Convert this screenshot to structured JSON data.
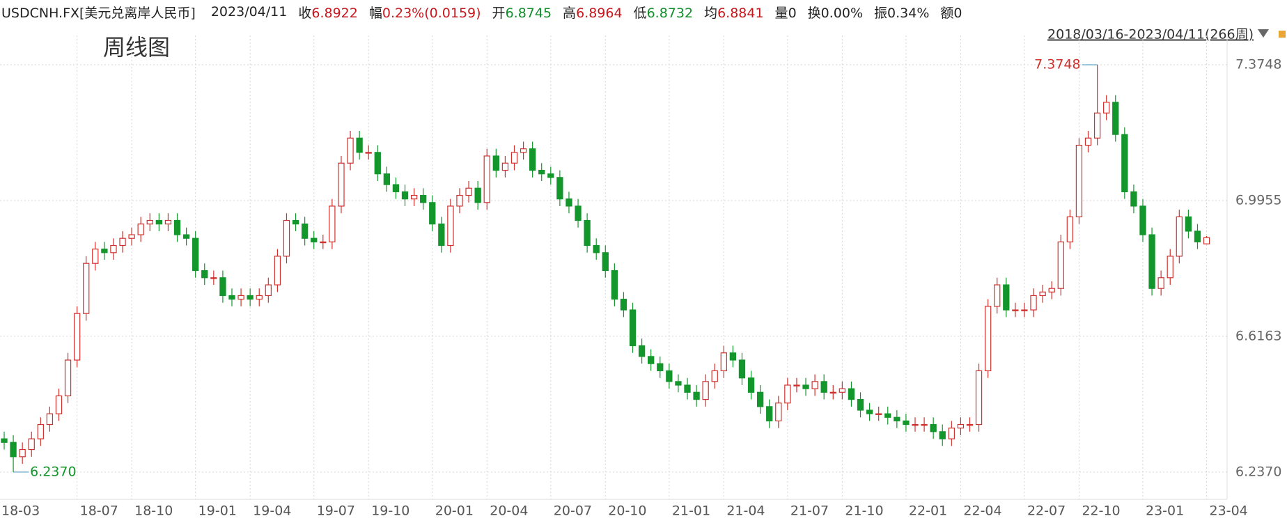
{
  "header": {
    "symbol": "USDCNH.FX[美元兑离岸人民币]",
    "date": "2023/04/11",
    "fields": [
      {
        "label": "收",
        "value": "6.8922",
        "color": "#c8161d"
      },
      {
        "label": "幅",
        "value": "0.23%(0.0159)",
        "color": "#c8161d"
      },
      {
        "label": "开",
        "value": "6.8745",
        "color": "#118d2a"
      },
      {
        "label": "高",
        "value": "6.8964",
        "color": "#c8161d"
      },
      {
        "label": "低",
        "value": "6.8732",
        "color": "#118d2a"
      },
      {
        "label": "均",
        "value": "6.8841",
        "color": "#c8161d"
      },
      {
        "label": "量",
        "value": "0",
        "color": "#222222"
      },
      {
        "label": "换",
        "value": "0.00%",
        "color": "#222222"
      },
      {
        "label": "振",
        "value": "0.34%",
        "color": "#222222"
      },
      {
        "label": "额",
        "value": "0",
        "color": "#222222"
      }
    ]
  },
  "chart_data": {
    "type": "candlestick",
    "subtitle": "周线图",
    "range_text": "2018/03/16-2023/04/11(266周)",
    "up_color": "#d0312d",
    "down_color": "#13962c",
    "grid": true,
    "ylim": [
      6.161,
      7.437
    ],
    "yticks": [
      {
        "value": 6.237,
        "label": "6.2370"
      },
      6.6163,
      6.9955,
      7.3748
    ],
    "annotations": {
      "max_label": "7.3748",
      "min_label": "6.2370"
    },
    "categories": [
      "18-03",
      null,
      null,
      null,
      null,
      null,
      null,
      null,
      "18-07",
      null,
      null,
      null,
      null,
      null,
      "18-10",
      null,
      null,
      null,
      null,
      null,
      null,
      "19-01",
      null,
      null,
      null,
      null,
      null,
      "19-04",
      null,
      null,
      null,
      null,
      null,
      null,
      "19-07",
      null,
      null,
      null,
      null,
      null,
      "19-10",
      null,
      null,
      null,
      null,
      null,
      null,
      "20-01",
      null,
      null,
      null,
      null,
      null,
      "20-04",
      null,
      null,
      null,
      null,
      null,
      null,
      "20-07",
      null,
      null,
      null,
      null,
      null,
      "20-10",
      null,
      null,
      null,
      null,
      null,
      null,
      "21-01",
      null,
      null,
      null,
      null,
      null,
      "21-04",
      null,
      null,
      null,
      null,
      null,
      null,
      "21-07",
      null,
      null,
      null,
      null,
      null,
      "21-10",
      null,
      null,
      null,
      null,
      null,
      null,
      "22-01",
      null,
      null,
      null,
      null,
      null,
      "22-04",
      null,
      null,
      null,
      null,
      null,
      null,
      "22-07",
      null,
      null,
      null,
      null,
      null,
      "22-10",
      null,
      null,
      null,
      null,
      null,
      null,
      "23-01",
      null,
      null,
      null,
      null,
      null,
      null,
      "23-04"
    ],
    "open": [
      6.33,
      6.32,
      6.28,
      6.3,
      6.33,
      6.37,
      6.4,
      6.45,
      6.55,
      6.68,
      6.82,
      6.86,
      6.85,
      6.87,
      6.89,
      6.9,
      6.93,
      6.94,
      6.93,
      6.94,
      6.9,
      6.89,
      6.8,
      6.78,
      6.78,
      6.73,
      6.72,
      6.73,
      6.72,
      6.73,
      6.76,
      6.84,
      6.94,
      6.93,
      6.89,
      6.88,
      6.88,
      6.98,
      7.1,
      7.17,
      7.13,
      7.13,
      7.07,
      7.04,
      7.02,
      7.0,
      7.01,
      6.99,
      6.93,
      6.87,
      6.98,
      7.01,
      7.03,
      6.99,
      7.12,
      7.08,
      7.1,
      7.13,
      7.14,
      7.08,
      7.07,
      7.06,
      7.0,
      6.98,
      6.94,
      6.87,
      6.85,
      6.8,
      6.72,
      6.69,
      6.59,
      6.56,
      6.54,
      6.52,
      6.49,
      6.48,
      6.46,
      6.44,
      6.49,
      6.52,
      6.57,
      6.55,
      6.5,
      6.46,
      6.42,
      6.38,
      6.43,
      6.48,
      6.48,
      6.47,
      6.49,
      6.46,
      6.46,
      6.47,
      6.44,
      6.41,
      6.4,
      6.4,
      6.39,
      6.38,
      6.37,
      6.37,
      6.37,
      6.35,
      6.33,
      6.36,
      6.37,
      6.37,
      6.52,
      6.7,
      6.76,
      6.69,
      6.69,
      6.69,
      6.73,
      6.74,
      6.75,
      6.88,
      6.95,
      7.15,
      7.17,
      7.24,
      7.27,
      7.18,
      7.02,
      6.98,
      6.9,
      6.75,
      6.78,
      6.84,
      6.95,
      6.91,
      6.8745
    ],
    "high": [
      6.35,
      6.34,
      6.32,
      6.35,
      6.39,
      6.42,
      6.47,
      6.57,
      6.7,
      6.84,
      6.88,
      6.88,
      6.89,
      6.91,
      6.92,
      6.95,
      6.96,
      6.96,
      6.96,
      6.96,
      6.92,
      6.91,
      6.82,
      6.8,
      6.8,
      6.75,
      6.75,
      6.75,
      6.75,
      6.78,
      6.86,
      6.96,
      6.96,
      6.95,
      6.91,
      6.9,
      7.0,
      7.12,
      7.19,
      7.19,
      7.15,
      7.15,
      7.09,
      7.06,
      7.04,
      7.03,
      7.03,
      7.01,
      6.95,
      7.0,
      7.03,
      7.05,
      7.05,
      7.14,
      7.14,
      7.12,
      7.15,
      7.16,
      7.16,
      7.1,
      7.09,
      7.08,
      7.02,
      7.0,
      6.96,
      6.89,
      6.87,
      6.82,
      6.74,
      6.71,
      6.61,
      6.58,
      6.56,
      6.54,
      6.51,
      6.5,
      6.48,
      6.51,
      6.54,
      6.59,
      6.59,
      6.57,
      6.52,
      6.48,
      6.44,
      6.45,
      6.5,
      6.5,
      6.5,
      6.51,
      6.51,
      6.48,
      6.49,
      6.49,
      6.46,
      6.43,
      6.42,
      6.42,
      6.41,
      6.4,
      6.39,
      6.39,
      6.39,
      6.37,
      6.38,
      6.39,
      6.39,
      6.54,
      6.72,
      6.78,
      6.78,
      6.71,
      6.71,
      6.75,
      6.76,
      6.77,
      6.9,
      6.97,
      7.17,
      7.19,
      7.3748,
      7.29,
      7.29,
      7.2,
      7.04,
      7.0,
      6.92,
      6.8,
      6.86,
      6.97,
      6.97,
      6.93,
      6.8964
    ],
    "low": [
      6.3,
      6.237,
      6.26,
      6.28,
      6.31,
      6.35,
      6.38,
      6.43,
      6.53,
      6.66,
      6.8,
      6.83,
      6.83,
      6.85,
      6.87,
      6.88,
      6.91,
      6.91,
      6.91,
      6.88,
      6.87,
      6.78,
      6.76,
      6.76,
      6.71,
      6.7,
      6.7,
      6.7,
      6.7,
      6.71,
      6.74,
      6.82,
      6.91,
      6.87,
      6.86,
      6.86,
      6.86,
      6.96,
      7.08,
      7.11,
      7.11,
      7.05,
      7.02,
      7.0,
      6.98,
      6.98,
      6.97,
      6.91,
      6.85,
      6.85,
      6.96,
      6.99,
      6.97,
      6.97,
      7.06,
      7.06,
      7.08,
      7.11,
      7.06,
      7.05,
      7.04,
      6.98,
      6.96,
      6.92,
      6.85,
      6.83,
      6.78,
      6.7,
      6.67,
      6.57,
      6.54,
      6.52,
      6.5,
      6.47,
      6.46,
      6.44,
      6.42,
      6.42,
      6.47,
      6.5,
      6.53,
      6.48,
      6.44,
      6.4,
      6.36,
      6.36,
      6.41,
      6.46,
      6.45,
      6.45,
      6.44,
      6.44,
      6.44,
      6.42,
      6.39,
      6.38,
      6.38,
      6.37,
      6.36,
      6.35,
      6.35,
      6.35,
      6.33,
      6.31,
      6.31,
      6.34,
      6.35,
      6.35,
      6.5,
      6.68,
      6.67,
      6.67,
      6.67,
      6.67,
      6.71,
      6.72,
      6.73,
      6.86,
      6.93,
      7.13,
      7.15,
      7.22,
      7.16,
      7.0,
      6.96,
      6.88,
      6.73,
      6.73,
      6.76,
      6.82,
      6.89,
      6.86,
      6.8732
    ],
    "close": [
      6.32,
      6.28,
      6.3,
      6.33,
      6.37,
      6.4,
      6.45,
      6.55,
      6.68,
      6.82,
      6.86,
      6.85,
      6.87,
      6.89,
      6.9,
      6.93,
      6.94,
      6.93,
      6.94,
      6.9,
      6.89,
      6.8,
      6.78,
      6.78,
      6.73,
      6.72,
      6.73,
      6.72,
      6.73,
      6.76,
      6.84,
      6.94,
      6.93,
      6.89,
      6.88,
      6.88,
      6.98,
      7.1,
      7.17,
      7.13,
      7.13,
      7.07,
      7.04,
      7.02,
      7.0,
      7.01,
      6.99,
      6.93,
      6.87,
      6.98,
      7.01,
      7.03,
      6.99,
      7.12,
      7.08,
      7.1,
      7.13,
      7.14,
      7.08,
      7.07,
      7.06,
      7.0,
      6.98,
      6.94,
      6.87,
      6.85,
      6.8,
      6.72,
      6.69,
      6.59,
      6.56,
      6.54,
      6.52,
      6.49,
      6.48,
      6.46,
      6.44,
      6.49,
      6.52,
      6.57,
      6.55,
      6.5,
      6.46,
      6.42,
      6.38,
      6.43,
      6.48,
      6.48,
      6.47,
      6.49,
      6.46,
      6.46,
      6.47,
      6.44,
      6.41,
      6.4,
      6.4,
      6.39,
      6.38,
      6.37,
      6.37,
      6.37,
      6.35,
      6.33,
      6.36,
      6.37,
      6.37,
      6.52,
      6.7,
      6.76,
      6.69,
      6.69,
      6.69,
      6.73,
      6.74,
      6.75,
      6.88,
      6.95,
      7.15,
      7.17,
      7.24,
      7.27,
      7.18,
      7.02,
      6.98,
      6.9,
      6.75,
      6.78,
      6.84,
      6.95,
      6.91,
      6.88,
      6.8922
    ]
  }
}
